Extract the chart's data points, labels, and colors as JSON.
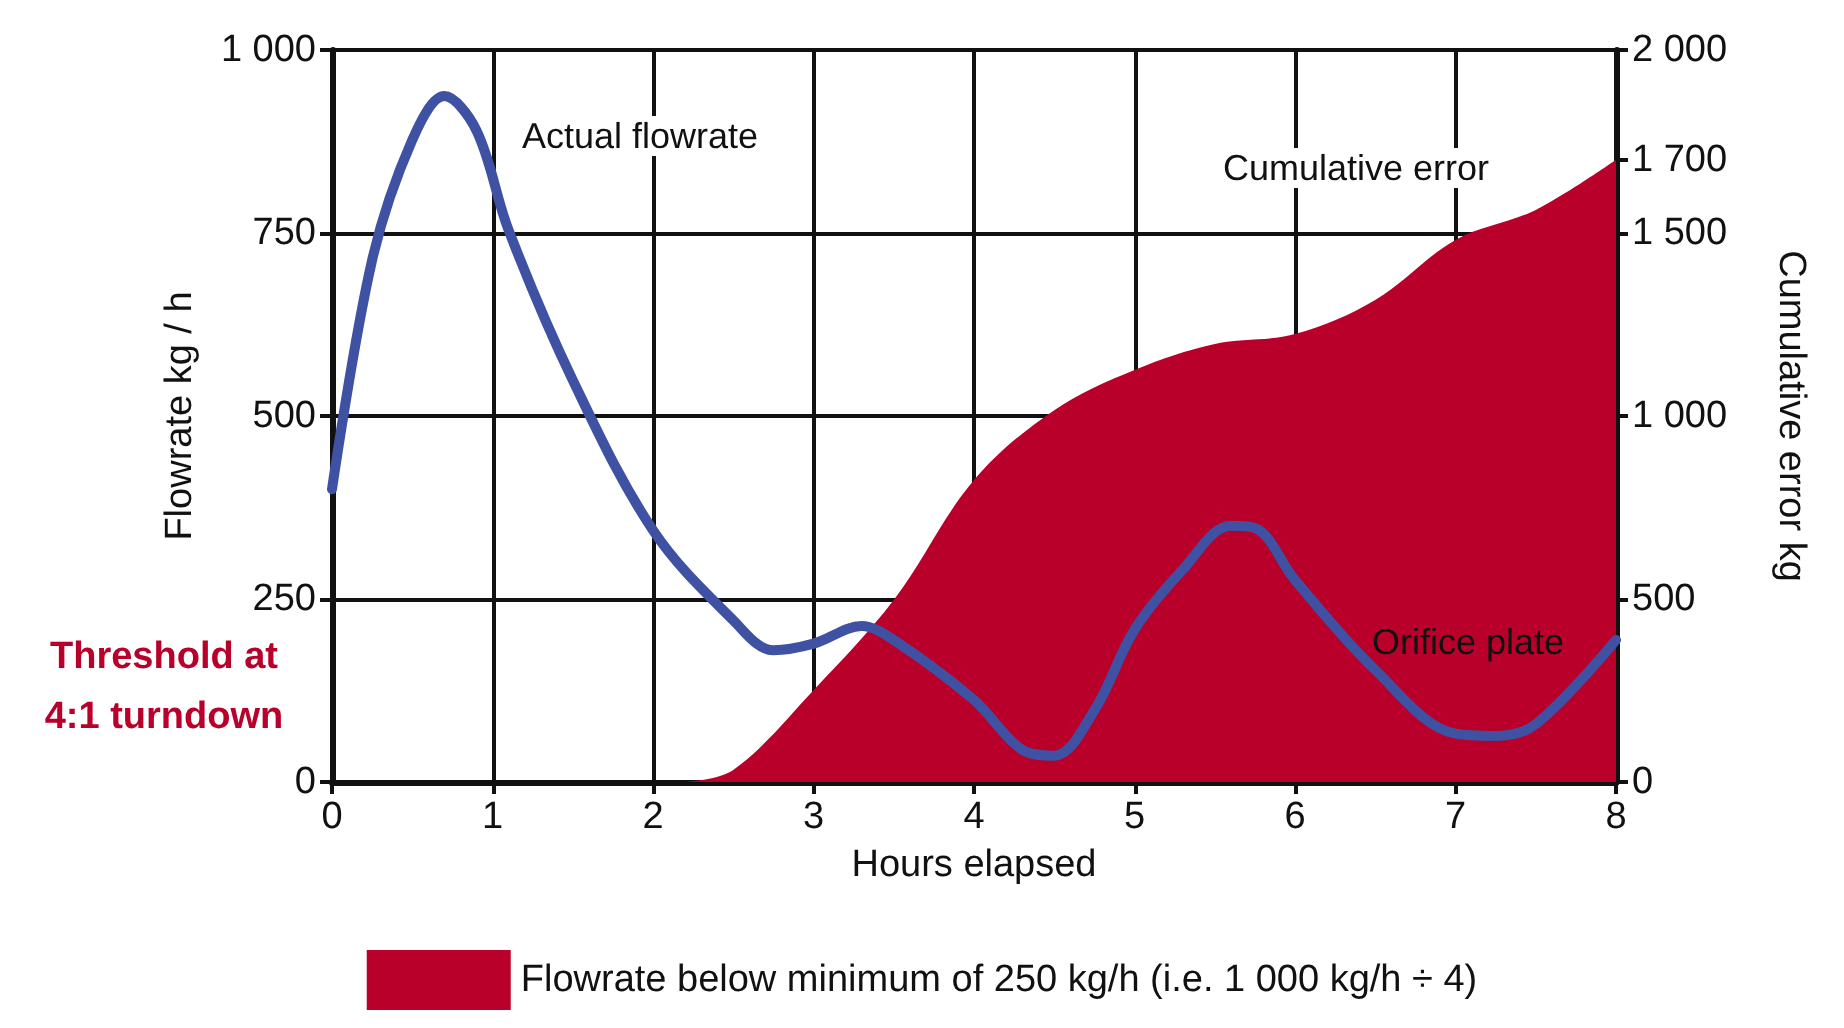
{
  "chart_data": {
    "type": "line",
    "xlabel": "Hours elapsed",
    "ylabel": "Flowrate kg / h",
    "y2label": "Cumulative error kg",
    "xlim": [
      0,
      8
    ],
    "xticks": [
      0,
      1,
      2,
      3,
      4,
      5,
      6,
      7,
      8
    ],
    "ylim": [
      0,
      1000
    ],
    "yticks": [
      0,
      250,
      500,
      750,
      {
        "value": 1000,
        "label": "1 000"
      }
    ],
    "y2lim": [
      0,
      2000
    ],
    "y2ticks": [
      0,
      500,
      {
        "value": 1000,
        "label": "1 000"
      },
      {
        "value": 1500,
        "label": "1 500"
      },
      {
        "value": 1700,
        "label": "1 700"
      },
      {
        "value": 2000,
        "label": "2 000"
      }
    ],
    "grid": true,
    "legend": "bottom",
    "marker": "none",
    "line_style": "solid",
    "series": [
      {
        "type": "area",
        "axis": "y2",
        "name": "Flowrate below minimum of 250 kg/h (i.e. 1 000 kg/h ÷ 4)",
        "color": "#b8002a",
        "x": [
          2.2,
          2.5,
          3,
          3.5,
          4,
          4.5,
          5,
          5.5,
          6,
          6.5,
          7,
          7.5,
          8
        ],
        "values": [
          0,
          33,
          251,
          497,
          825,
          1016,
          1126,
          1197,
          1224,
          1317,
          1481,
          1563,
          1700
        ]
      },
      {
        "color": "#3f51a3",
        "x": [
          0,
          0.25,
          0.5,
          0.7,
          0.9,
          1.1,
          1.5,
          2,
          2.5,
          2.75,
          3,
          3.3,
          3.5,
          4,
          4.3,
          4.5,
          4.75,
          5,
          5.3,
          5.6,
          5.75,
          6,
          6.5,
          7,
          7.25,
          7.5,
          8
        ],
        "values": [
          400,
          713,
          877,
          937,
          890,
          754,
          549,
          344,
          221,
          180,
          189,
          213,
          194,
          112,
          44,
          36,
          98,
          208,
          290,
          350,
          347,
          276,
          153,
          66,
          63,
          79,
          194
        ]
      }
    ],
    "annotations": [
      "Actual flowrate",
      "Cumulative error",
      "Orifice plate",
      "Threshold at\n4:1 turndown"
    ]
  }
}
